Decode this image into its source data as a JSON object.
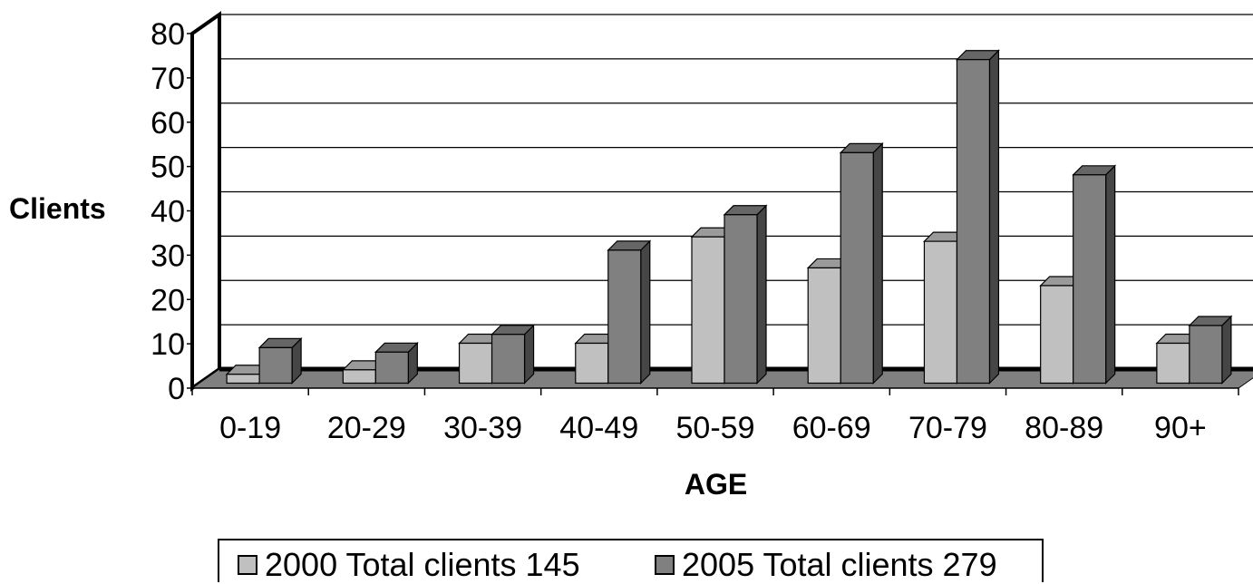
{
  "chart_data": {
    "type": "bar",
    "title": "",
    "xlabel": "AGE",
    "ylabel": "Clients",
    "ylim": [
      0,
      80
    ],
    "yticks": [
      "0",
      "10",
      "20",
      "30",
      "40",
      "50",
      "60",
      "70",
      "80"
    ],
    "categories": [
      "0-19",
      "20-29",
      "30-39",
      "40-49",
      "50-59",
      "60-69",
      "70-79",
      "80-89",
      "90+"
    ],
    "series": [
      {
        "name": "2000 Total clients 145",
        "color": "#c0c0c0",
        "values": [
          2,
          3,
          9,
          9,
          33,
          26,
          32,
          22,
          9
        ]
      },
      {
        "name": "2005 Total clients 279",
        "color": "#808080",
        "values": [
          8,
          7,
          11,
          30,
          38,
          52,
          73,
          47,
          13
        ]
      }
    ],
    "grid": true,
    "legend": "bottom",
    "style": "3d-column"
  }
}
